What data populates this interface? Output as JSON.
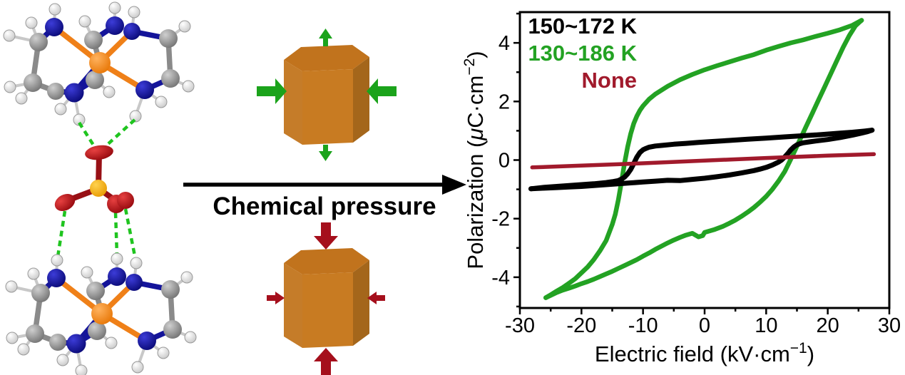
{
  "colors": {
    "metal_atom": "#ee7c10",
    "nitrogen_atom": "#10129e",
    "carbon_atom": "#8f8f8f",
    "hydrogen_atom": "#ededed",
    "anion_center_atom": "#eda008",
    "oxygen_atom": "#a50d12",
    "hydrogen_bond": "#1fc41f",
    "anion_bond": "#981015",
    "expansion_arrow": "#1ba31b",
    "compression_arrow": "#a50f1c",
    "prism_top": "#c1731d",
    "prism_left": "#c57c29",
    "prism_front": "#c87b22",
    "prism_right": "#a4661b",
    "reaction_arrow": "#000000"
  },
  "pressure_panel": {
    "arrow_label": "Chemical pressure"
  },
  "chart_data": {
    "type": "line",
    "title": "",
    "xlabel": {
      "text": "Electric field (kV·cm−1)",
      "base": "Electric field (kV·cm",
      "sup": "−1",
      "end": ")"
    },
    "ylabel": {
      "text": "Polarization (μC·cm−2)",
      "pre": "Polarization (",
      "mu": "μ",
      "mid": "C·cm",
      "sup": "−2",
      "end": ")"
    },
    "xlim": [
      -30,
      30
    ],
    "ylim": [
      -5.05,
      5.05
    ],
    "x_ticks": [
      -30,
      -20,
      -10,
      0,
      10,
      20,
      30
    ],
    "y_ticks": [
      -4,
      -2,
      0,
      2,
      4
    ],
    "x_minor_ticks": [
      -25,
      -15,
      -5,
      5,
      15,
      25
    ],
    "y_minor_ticks": [
      -5,
      -3,
      -1,
      1,
      3,
      5
    ],
    "grid": false,
    "legend_position": "top-left-inside",
    "legend": [
      {
        "label": "150~172 K",
        "color": "#000000"
      },
      {
        "label": "130~186 K",
        "color": "#23a223"
      },
      {
        "label": "None",
        "color": "#a11a2c"
      }
    ],
    "series": [
      {
        "name": "130~186 K",
        "color": "#23a223",
        "width": 6.5,
        "branches": [
          [
            [
              25.5,
              4.77
            ],
            [
              24,
              4.6
            ],
            [
              22,
              4.45
            ],
            [
              20,
              4.33
            ],
            [
              18,
              4.22
            ],
            [
              16,
              4.1
            ],
            [
              14,
              4.0
            ],
            [
              12,
              3.88
            ],
            [
              10,
              3.75
            ],
            [
              8,
              3.6
            ],
            [
              6,
              3.48
            ],
            [
              4,
              3.35
            ],
            [
              2,
              3.22
            ],
            [
              0,
              3.08
            ],
            [
              -2,
              2.92
            ],
            [
              -4,
              2.74
            ],
            [
              -6,
              2.52
            ],
            [
              -8,
              2.25
            ],
            [
              -9,
              2.08
            ],
            [
              -10,
              1.85
            ],
            [
              -10.5,
              1.7
            ],
            [
              -11,
              1.5
            ],
            [
              -11.5,
              1.25
            ],
            [
              -12,
              0.9
            ],
            [
              -12.5,
              0.45
            ],
            [
              -13,
              -0.1
            ],
            [
              -13.5,
              -0.75
            ],
            [
              -14,
              -1.35
            ],
            [
              -14.5,
              -1.85
            ],
            [
              -15,
              -2.2
            ],
            [
              -16,
              -2.75
            ],
            [
              -17,
              -3.1
            ],
            [
              -18,
              -3.4
            ],
            [
              -19,
              -3.65
            ],
            [
              -20,
              -3.85
            ],
            [
              -21,
              -4.05
            ],
            [
              -22,
              -4.2
            ],
            [
              -23,
              -4.35
            ],
            [
              -24,
              -4.47
            ],
            [
              -25,
              -4.6
            ],
            [
              -25.8,
              -4.7
            ]
          ],
          [
            [
              -25.8,
              -4.7
            ],
            [
              -25,
              -4.62
            ],
            [
              -24,
              -4.52
            ],
            [
              -23,
              -4.44
            ],
            [
              -22,
              -4.37
            ],
            [
              -21,
              -4.3
            ],
            [
              -20,
              -4.22
            ],
            [
              -19,
              -4.15
            ],
            [
              -18,
              -4.07
            ],
            [
              -17,
              -3.98
            ],
            [
              -16,
              -3.89
            ],
            [
              -15,
              -3.8
            ],
            [
              -14,
              -3.7
            ],
            [
              -13,
              -3.6
            ],
            [
              -12,
              -3.5
            ],
            [
              -11,
              -3.4
            ],
            [
              -10,
              -3.28
            ],
            [
              -9,
              -3.17
            ],
            [
              -8,
              -3.05
            ],
            [
              -7,
              -2.94
            ],
            [
              -6,
              -2.83
            ],
            [
              -5,
              -2.73
            ],
            [
              -4,
              -2.64
            ],
            [
              -3,
              -2.56
            ],
            [
              -2,
              -2.5
            ],
            [
              -1,
              -2.62
            ],
            [
              -0.3,
              -2.58
            ],
            [
              0,
              -2.47
            ],
            [
              0.5,
              -2.44
            ],
            [
              1.5,
              -2.38
            ],
            [
              3,
              -2.26
            ],
            [
              4,
              -2.16
            ],
            [
              5,
              -2.05
            ],
            [
              6,
              -1.92
            ],
            [
              7,
              -1.78
            ],
            [
              8,
              -1.62
            ],
            [
              9,
              -1.44
            ],
            [
              10,
              -1.24
            ],
            [
              11,
              -1.0
            ],
            [
              12,
              -0.72
            ],
            [
              13,
              -0.4
            ],
            [
              13.7,
              -0.1
            ],
            [
              14.5,
              0.25
            ],
            [
              15.5,
              0.7
            ],
            [
              16.5,
              1.15
            ],
            [
              17.5,
              1.6
            ],
            [
              18.5,
              2.05
            ],
            [
              19.5,
              2.5
            ],
            [
              20.5,
              2.95
            ],
            [
              21.5,
              3.4
            ],
            [
              22.5,
              3.85
            ],
            [
              23.5,
              4.25
            ],
            [
              24.5,
              4.58
            ],
            [
              25.2,
              4.72
            ],
            [
              25.5,
              4.77
            ]
          ]
        ]
      },
      {
        "name": "150~172 K",
        "color": "#000000",
        "width": 7,
        "branches": [
          [
            [
              -28.2,
              -0.98
            ],
            [
              -26,
              -0.93
            ],
            [
              -24,
              -0.9
            ],
            [
              -22,
              -0.87
            ],
            [
              -20,
              -0.84
            ],
            [
              -18,
              -0.81
            ],
            [
              -16,
              -0.77
            ],
            [
              -15,
              -0.74
            ],
            [
              -14,
              -0.7
            ],
            [
              -13.5,
              -0.65
            ],
            [
              -13,
              -0.58
            ],
            [
              -12.5,
              -0.47
            ],
            [
              -12,
              -0.32
            ],
            [
              -11.5,
              -0.12
            ],
            [
              -11,
              0.1
            ],
            [
              -10.5,
              0.26
            ],
            [
              -10,
              0.35
            ],
            [
              -9.5,
              0.4
            ],
            [
              -9,
              0.44
            ],
            [
              -8,
              0.48
            ],
            [
              -7,
              0.5
            ],
            [
              -5,
              0.54
            ],
            [
              -3,
              0.57
            ],
            [
              -1,
              0.6
            ],
            [
              1,
              0.63
            ],
            [
              4,
              0.67
            ],
            [
              7,
              0.71
            ],
            [
              10,
              0.75
            ],
            [
              13,
              0.79
            ],
            [
              16,
              0.83
            ],
            [
              19,
              0.87
            ],
            [
              22,
              0.92
            ],
            [
              24,
              0.95
            ],
            [
              26,
              0.99
            ],
            [
              27.2,
              1.02
            ]
          ],
          [
            [
              -28.2,
              -0.98
            ],
            [
              -26,
              -0.96
            ],
            [
              -24,
              -0.94
            ],
            [
              -22,
              -0.92
            ],
            [
              -20,
              -0.9
            ],
            [
              -18,
              -0.87
            ],
            [
              -16,
              -0.84
            ],
            [
              -14,
              -0.81
            ],
            [
              -12,
              -0.78
            ],
            [
              -10,
              -0.75
            ],
            [
              -8,
              -0.72
            ],
            [
              -6,
              -0.69
            ],
            [
              -4,
              -0.7
            ],
            [
              -2,
              -0.66
            ],
            [
              0,
              -0.62
            ],
            [
              2,
              -0.57
            ],
            [
              4,
              -0.51
            ],
            [
              6,
              -0.44
            ],
            [
              8,
              -0.36
            ],
            [
              9,
              -0.31
            ],
            [
              10,
              -0.25
            ],
            [
              11,
              -0.17
            ],
            [
              12,
              -0.07
            ],
            [
              12.5,
              0.0
            ],
            [
              13,
              0.1
            ],
            [
              13.5,
              0.22
            ],
            [
              14,
              0.35
            ],
            [
              14.5,
              0.45
            ],
            [
              15,
              0.52
            ],
            [
              15.5,
              0.56
            ],
            [
              16,
              0.59
            ],
            [
              17,
              0.62
            ],
            [
              18,
              0.65
            ],
            [
              20,
              0.7
            ],
            [
              22,
              0.77
            ],
            [
              24,
              0.85
            ],
            [
              25.5,
              0.92
            ],
            [
              26.5,
              0.97
            ],
            [
              27.2,
              1.02
            ]
          ]
        ]
      },
      {
        "name": "None",
        "color": "#a11a2c",
        "width": 5.5,
        "branches": [
          [
            [
              -28,
              -0.25
            ],
            [
              -20,
              -0.19
            ],
            [
              -10,
              -0.11
            ],
            [
              0,
              -0.02
            ],
            [
              10,
              0.07
            ],
            [
              20,
              0.15
            ],
            [
              27.5,
              0.2
            ]
          ]
        ]
      }
    ]
  }
}
